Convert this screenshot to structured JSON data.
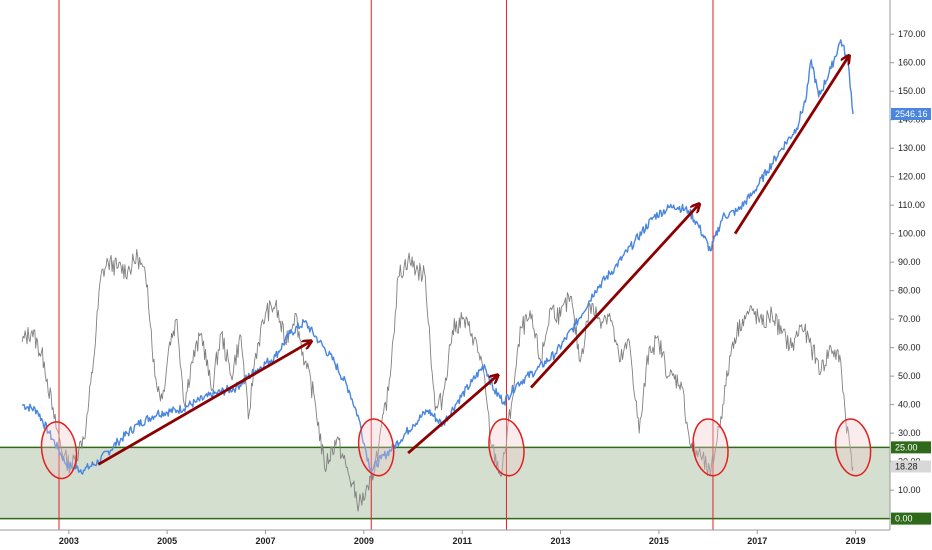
{
  "chart_data": {
    "type": "line",
    "xlim": [
      2001.6,
      2019.7
    ],
    "ylim": [
      -4,
      182
    ],
    "x_ticks": [
      "2003",
      "2005",
      "2007",
      "2009",
      "2011",
      "2013",
      "2015",
      "2017",
      "2019"
    ],
    "y_ticks": [
      "0.00",
      "10.00",
      "20.00",
      "30.00",
      "40.00",
      "50.00",
      "60.00",
      "70.00",
      "80.00",
      "90.00",
      "100.00",
      "110.00",
      "120.00",
      "130.00",
      "140.00",
      "150.00",
      "160.00",
      "170.00"
    ],
    "grid": false,
    "colors": {
      "price": "#4a86e0",
      "oscillator": "#808080",
      "vertical_markers": "#dd2222",
      "arrows": "#8b0000",
      "zone_fill": "#d4dfd0",
      "zone_lines": "#2f6a1a",
      "circles": "#e02020"
    },
    "zone": {
      "low": 0,
      "high": 25
    },
    "vertical_markers": [
      2002.8,
      2009.15,
      2011.9,
      2016.1
    ],
    "last_value_badges": [
      {
        "label": "2546.16",
        "value": 142,
        "color": "#4a86e0"
      },
      {
        "label": "25.00",
        "value": 25,
        "color": "#2f6a1a"
      },
      {
        "label": "18.28",
        "value": 18.28,
        "color": "#d8d8d8"
      },
      {
        "label": "0.00",
        "value": 0,
        "color": "#2f6a1a"
      }
    ],
    "arrows": [
      {
        "x1": 2003.6,
        "y1": 19,
        "x2": 2007.9,
        "y2": 62
      },
      {
        "x1": 2009.9,
        "y1": 23,
        "x2": 2011.7,
        "y2": 50
      },
      {
        "x1": 2012.4,
        "y1": 46,
        "x2": 2015.8,
        "y2": 110
      },
      {
        "x1": 2016.55,
        "y1": 100,
        "x2": 2018.85,
        "y2": 162
      }
    ],
    "circles": [
      {
        "x": 2002.8,
        "y": 24,
        "rx_years": 0.35,
        "ry_units": 10
      },
      {
        "x": 2009.25,
        "y": 25,
        "rx_years": 0.35,
        "ry_units": 10
      },
      {
        "x": 2011.9,
        "y": 25,
        "rx_years": 0.35,
        "ry_units": 10
      },
      {
        "x": 2016.05,
        "y": 25,
        "rx_years": 0.35,
        "ry_units": 10
      },
      {
        "x": 2018.95,
        "y": 25,
        "rx_years": 0.35,
        "ry_units": 10
      }
    ],
    "series": [
      {
        "values_label": "price",
        "points": [
          [
            2002.05,
            40
          ],
          [
            2002.35,
            38
          ],
          [
            2002.6,
            30
          ],
          [
            2002.8,
            24
          ],
          [
            2002.95,
            19
          ],
          [
            2003.1,
            18
          ],
          [
            2003.3,
            17
          ],
          [
            2003.6,
            20
          ],
          [
            2004.0,
            27
          ],
          [
            2004.4,
            33
          ],
          [
            2004.8,
            37
          ],
          [
            2005.2,
            38
          ],
          [
            2005.6,
            41
          ],
          [
            2006.0,
            44
          ],
          [
            2006.4,
            46
          ],
          [
            2006.8,
            52
          ],
          [
            2007.2,
            57
          ],
          [
            2007.5,
            65
          ],
          [
            2007.8,
            69
          ],
          [
            2008.1,
            62
          ],
          [
            2008.4,
            55
          ],
          [
            2008.7,
            45
          ],
          [
            2008.9,
            35
          ],
          [
            2009.05,
            23
          ],
          [
            2009.15,
            17
          ],
          [
            2009.35,
            21
          ],
          [
            2009.6,
            25
          ],
          [
            2010.0,
            33
          ],
          [
            2010.3,
            38
          ],
          [
            2010.6,
            33
          ],
          [
            2010.9,
            41
          ],
          [
            2011.2,
            48
          ],
          [
            2011.45,
            54
          ],
          [
            2011.65,
            45
          ],
          [
            2011.85,
            41
          ],
          [
            2012.1,
            47
          ],
          [
            2012.5,
            52
          ],
          [
            2012.9,
            58
          ],
          [
            2013.3,
            68
          ],
          [
            2013.7,
            80
          ],
          [
            2014.1,
            88
          ],
          [
            2014.5,
            97
          ],
          [
            2014.9,
            106
          ],
          [
            2015.3,
            110
          ],
          [
            2015.6,
            108
          ],
          [
            2015.8,
            103
          ],
          [
            2016.05,
            94
          ],
          [
            2016.3,
            106
          ],
          [
            2016.6,
            108
          ],
          [
            2016.9,
            114
          ],
          [
            2017.2,
            122
          ],
          [
            2017.5,
            130
          ],
          [
            2017.8,
            137
          ],
          [
            2018.0,
            148
          ],
          [
            2018.1,
            161
          ],
          [
            2018.25,
            148
          ],
          [
            2018.5,
            158
          ],
          [
            2018.7,
            168
          ],
          [
            2018.85,
            160
          ],
          [
            2018.95,
            142
          ]
        ]
      },
      {
        "values_label": "oscillator",
        "points": [
          [
            2002.05,
            62
          ],
          [
            2002.25,
            66
          ],
          [
            2002.5,
            55
          ],
          [
            2002.7,
            35
          ],
          [
            2002.9,
            22
          ],
          [
            2003.05,
            18
          ],
          [
            2003.2,
            24
          ],
          [
            2003.35,
            32
          ],
          [
            2003.5,
            55
          ],
          [
            2003.65,
            85
          ],
          [
            2003.8,
            90
          ],
          [
            2004.0,
            88
          ],
          [
            2004.2,
            87
          ],
          [
            2004.4,
            92
          ],
          [
            2004.6,
            82
          ],
          [
            2004.75,
            50
          ],
          [
            2004.9,
            42
          ],
          [
            2005.05,
            62
          ],
          [
            2005.2,
            70
          ],
          [
            2005.35,
            40
          ],
          [
            2005.5,
            55
          ],
          [
            2005.7,
            65
          ],
          [
            2005.9,
            45
          ],
          [
            2006.1,
            65
          ],
          [
            2006.3,
            50
          ],
          [
            2006.5,
            64
          ],
          [
            2006.65,
            35
          ],
          [
            2006.8,
            58
          ],
          [
            2007.0,
            72
          ],
          [
            2007.2,
            75
          ],
          [
            2007.4,
            62
          ],
          [
            2007.6,
            72
          ],
          [
            2007.8,
            55
          ],
          [
            2008.0,
            42
          ],
          [
            2008.2,
            18
          ],
          [
            2008.45,
            28
          ],
          [
            2008.7,
            15
          ],
          [
            2008.9,
            5
          ],
          [
            2009.1,
            10
          ],
          [
            2009.3,
            25
          ],
          [
            2009.5,
            45
          ],
          [
            2009.7,
            85
          ],
          [
            2009.9,
            91
          ],
          [
            2010.1,
            87
          ],
          [
            2010.25,
            85
          ],
          [
            2010.45,
            38
          ],
          [
            2010.6,
            42
          ],
          [
            2010.8,
            66
          ],
          [
            2011.0,
            70
          ],
          [
            2011.2,
            65
          ],
          [
            2011.4,
            55
          ],
          [
            2011.6,
            25
          ],
          [
            2011.8,
            15
          ],
          [
            2012.0,
            40
          ],
          [
            2012.2,
            67
          ],
          [
            2012.4,
            70
          ],
          [
            2012.6,
            55
          ],
          [
            2012.8,
            74
          ],
          [
            2013.0,
            71
          ],
          [
            2013.2,
            78
          ],
          [
            2013.4,
            55
          ],
          [
            2013.6,
            75
          ],
          [
            2013.8,
            70
          ],
          [
            2014.0,
            72
          ],
          [
            2014.2,
            55
          ],
          [
            2014.4,
            62
          ],
          [
            2014.6,
            30
          ],
          [
            2014.8,
            60
          ],
          [
            2015.0,
            62
          ],
          [
            2015.2,
            50
          ],
          [
            2015.45,
            48
          ],
          [
            2015.65,
            25
          ],
          [
            2015.85,
            22
          ],
          [
            2016.05,
            15
          ],
          [
            2016.3,
            40
          ],
          [
            2016.5,
            62
          ],
          [
            2016.7,
            70
          ],
          [
            2016.9,
            73
          ],
          [
            2017.1,
            68
          ],
          [
            2017.3,
            72
          ],
          [
            2017.5,
            65
          ],
          [
            2017.7,
            60
          ],
          [
            2017.9,
            68
          ],
          [
            2018.1,
            60
          ],
          [
            2018.3,
            52
          ],
          [
            2018.5,
            60
          ],
          [
            2018.7,
            55
          ],
          [
            2018.8,
            35
          ],
          [
            2018.95,
            18
          ]
        ]
      }
    ]
  }
}
